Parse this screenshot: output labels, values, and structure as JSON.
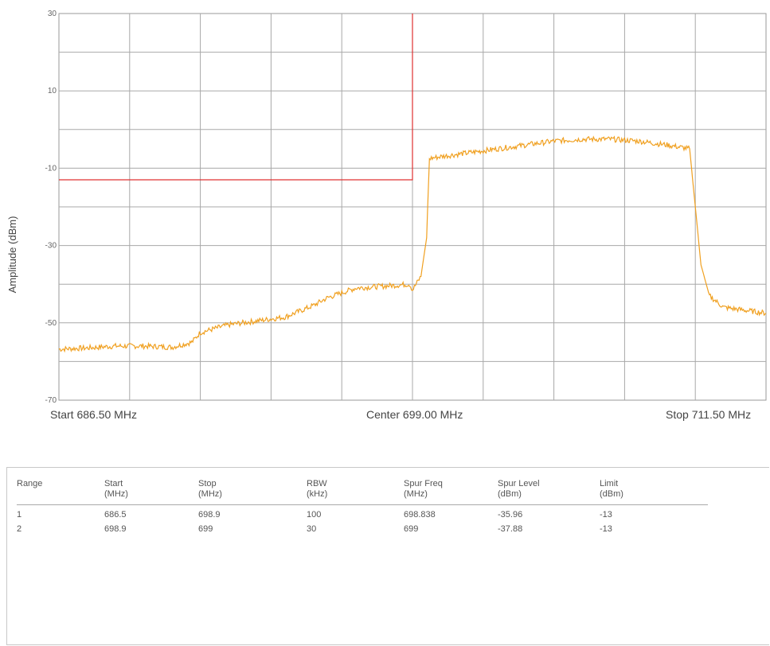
{
  "chart_data": {
    "type": "line",
    "ylabel": "Amplitude (dBm)",
    "ylim": [
      -70,
      30
    ],
    "yticks": [
      "30",
      "10",
      "-10",
      "-30",
      "-50",
      "-70"
    ],
    "xlim": [
      686.5,
      711.5
    ],
    "x_labels": {
      "start": "Start 686.50 MHz",
      "center": "Center 699.00 MHz",
      "stop": "Stop 711.50 MHz"
    },
    "grid": true,
    "trace_color": "#f0a020",
    "limit_color": "#e03030",
    "limit_line": {
      "x": [
        686.5,
        699.0,
        699.0
      ],
      "y": [
        -13,
        -13,
        30
      ]
    },
    "series": [
      {
        "x": [
          686.5,
          687.5,
          688.5,
          689.5,
          690.5,
          691.2,
          691.5,
          692.5,
          693.5,
          694.5,
          695.5,
          696.0,
          697.0,
          698.0,
          698.9,
          699.0,
          699.3,
          699.5,
          699.6,
          700.0,
          701.0,
          702.0,
          703.0,
          704.0,
          705.0,
          706.0,
          707.0,
          708.0,
          708.8,
          709.0,
          709.2,
          709.5,
          710.0,
          711.0,
          711.5
        ],
        "y": [
          -56.8,
          -56.5,
          -56.0,
          -56.0,
          -56.3,
          -55.0,
          -52.5,
          -50.5,
          -49.5,
          -48.5,
          -45.5,
          -43.5,
          -41.0,
          -40.5,
          -40.0,
          -41.5,
          -38.0,
          -28.0,
          -7.5,
          -7.0,
          -6.0,
          -5.0,
          -4.0,
          -3.0,
          -2.5,
          -2.5,
          -3.0,
          -4.0,
          -5.0,
          -20.0,
          -35.0,
          -43.0,
          -46.0,
          -47.0,
          -47.5
        ]
      }
    ]
  },
  "table": {
    "columns": [
      {
        "line1": "Range",
        "line2": ""
      },
      {
        "line1": "Start",
        "line2": "(MHz)"
      },
      {
        "line1": "Stop",
        "line2": "(MHz)"
      },
      {
        "line1": "RBW",
        "line2": "(kHz)"
      },
      {
        "line1": "Spur Freq",
        "line2": "(MHz)"
      },
      {
        "line1": "Spur Level",
        "line2": "(dBm)"
      },
      {
        "line1": "Limit",
        "line2": "(dBm)"
      }
    ],
    "rows": [
      [
        "1",
        "686.5",
        "698.9",
        "100",
        "698.838",
        "-35.96",
        "-13"
      ],
      [
        "2",
        "698.9",
        "699",
        "30",
        "699",
        "-37.88",
        "-13"
      ]
    ]
  }
}
